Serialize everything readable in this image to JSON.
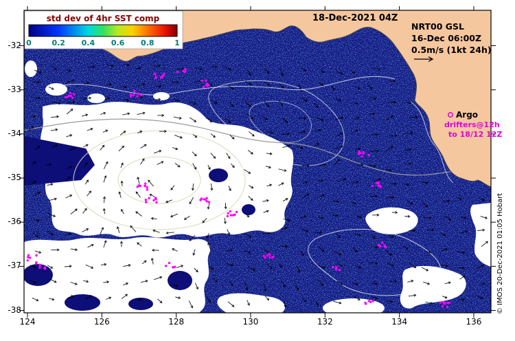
{
  "legend": {
    "title": "std dev of 4hr SST comp",
    "ticks": [
      "0",
      "0.2",
      "0.4",
      "0.6",
      "0.8",
      "1"
    ],
    "title_color": "#8b0000",
    "tick_color": "#007d7d",
    "colormap": [
      "#000085",
      "#0038ff",
      "#00d8e0",
      "#30e060",
      "#b8e820",
      "#ffd000",
      "#ff6000",
      "#e81000",
      "#800000"
    ]
  },
  "header": {
    "datetime": "18-Dec-2021 04Z"
  },
  "info": {
    "line1": "NRT00 GSL",
    "line2": "16-Dec 06:00Z",
    "line3": "0.5m/s (1kt 24h)"
  },
  "argo": {
    "title": "Argo",
    "sub1": "drifters@12h",
    "sub2": "to 18/12 12Z",
    "color": "#e000e0"
  },
  "credit": {
    "text": "© IMOS 20-Dec-2021 01:05 Hobart"
  },
  "axes": {
    "x_ticks": [
      "124",
      "126",
      "128",
      "130",
      "132",
      "134",
      "136"
    ],
    "y_ticks": [
      "-32",
      "-33",
      "-34",
      "-35",
      "-36",
      "-37",
      "-38"
    ]
  },
  "map": {
    "land_color": "#f5c79e",
    "ocean_color": "#0e0e78",
    "drifter_color": "#ff00ff",
    "drifter_clusters": [
      [
        265,
        100
      ],
      [
        232,
        112
      ],
      [
        102,
        140
      ],
      [
        198,
        136
      ],
      [
        300,
        122
      ],
      [
        530,
        225
      ],
      [
        548,
        267
      ],
      [
        208,
        272
      ],
      [
        220,
        292
      ],
      [
        297,
        290
      ],
      [
        338,
        310
      ],
      [
        47,
        375
      ],
      [
        60,
        386
      ],
      [
        247,
        387
      ],
      [
        392,
        372
      ],
      [
        492,
        392
      ],
      [
        558,
        357
      ],
      [
        648,
        442
      ],
      [
        540,
        437
      ]
    ]
  }
}
